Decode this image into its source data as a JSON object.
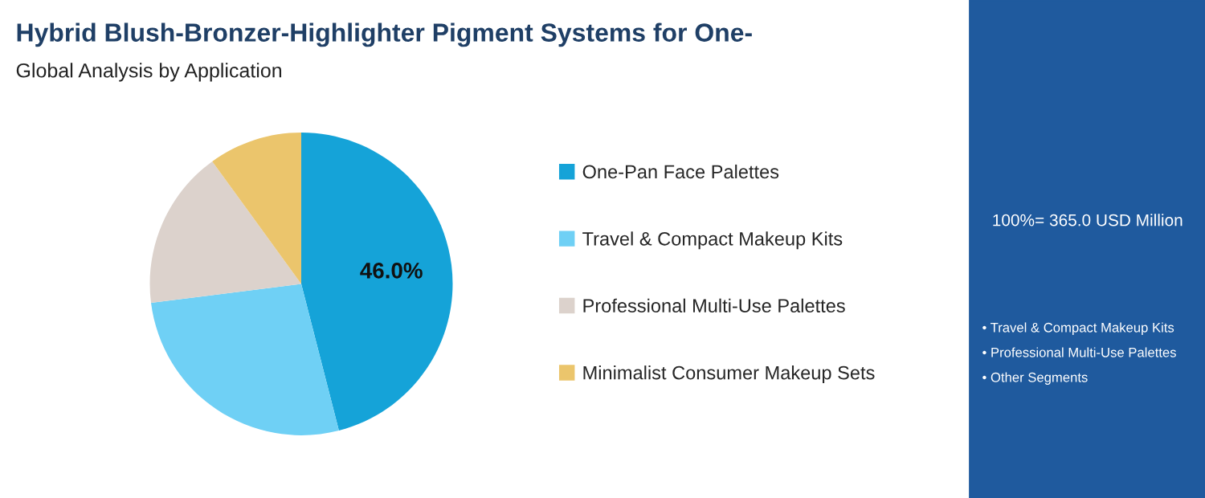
{
  "chart_data": {
    "type": "pie",
    "title": "Hybrid Blush-Bronzer-Highlighter Pigment Systems for One-",
    "subtitle": "Global Analysis by Application",
    "categories": [
      "One-Pan Face Palettes",
      "Travel & Compact Makeup Kits",
      "Professional Multi-Use Palettes",
      "Minimalist Consumer Makeup Sets"
    ],
    "values": [
      46.0,
      27,
      17,
      10
    ],
    "colors": [
      "#15a3d8",
      "#6fd0f5",
      "#dcd2cc",
      "#ebc56c"
    ],
    "value_labels": [
      "46.0%",
      null,
      null,
      null
    ],
    "legend": "right",
    "annotations": [
      "100%= 365.0 USD Million",
      "• Travel & Compact Makeup Kits",
      "• Professional Multi-Use Palettes",
      "• Other Segments"
    ]
  }
}
